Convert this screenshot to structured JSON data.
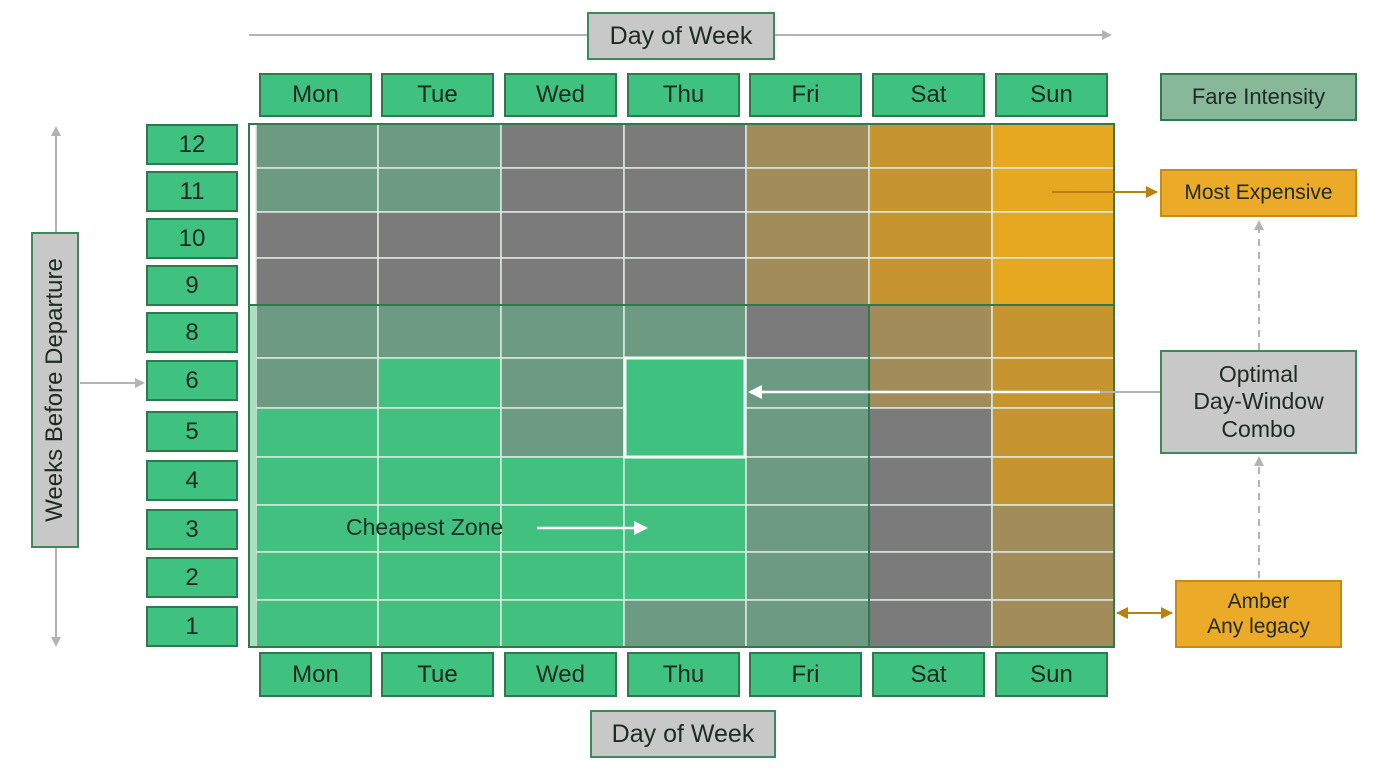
{
  "chart_data": {
    "type": "heatmap",
    "title": "",
    "xlabel": "Day of Week",
    "ylabel": "Weeks Before Departure",
    "x_categories": [
      "Mon",
      "Tue",
      "Wed",
      "Thu",
      "Fri",
      "Sat",
      "Sun"
    ],
    "y_categories": [
      "12",
      "11",
      "10",
      "9",
      "8",
      "6",
      "5",
      "4",
      "3",
      "2",
      "1"
    ],
    "cells": [
      [
        "sage",
        "sage",
        "grey",
        "grey",
        "tan",
        "amber",
        "gold"
      ],
      [
        "sage",
        "sage",
        "grey",
        "grey",
        "tan",
        "amber",
        "gold"
      ],
      [
        "grey",
        "grey",
        "grey",
        "grey",
        "tan",
        "amber",
        "gold"
      ],
      [
        "grey",
        "grey",
        "grey",
        "grey",
        "tan",
        "amber",
        "gold"
      ],
      [
        "sage",
        "sage",
        "sage",
        "sage",
        "grey",
        "tan",
        "amber"
      ],
      [
        "sage",
        "green",
        "sage",
        "green",
        "sage",
        "tan",
        "amber"
      ],
      [
        "green",
        "green",
        "sage",
        "green",
        "sage",
        "grey",
        "amber"
      ],
      [
        "green",
        "green",
        "green",
        "green",
        "sage",
        "grey",
        "amber"
      ],
      [
        "green",
        "green",
        "green",
        "green",
        "sage",
        "grey",
        "tan"
      ],
      [
        "green",
        "green",
        "green",
        "green",
        "sage",
        "grey",
        "tan"
      ],
      [
        "green",
        "green",
        "green",
        "sage",
        "sage",
        "grey",
        "tan"
      ]
    ],
    "palette": {
      "green": "#41c07f",
      "sage": "#6d9a82",
      "grey": "#7b7b7b",
      "tan": "#a18c5a",
      "amber": "#c6952f",
      "gold": "#e6a821"
    },
    "legend": {
      "title": "Fare Intensity",
      "most_expensive": "Most Expensive",
      "optimal": [
        "Optimal",
        "Day-Window",
        "Combo"
      ],
      "amber": [
        "Amber",
        "Any legacy"
      ]
    },
    "annotations": {
      "cheapest_zone": "Cheapest Zone"
    },
    "highlight": {
      "day": "Thu",
      "weeks": [
        "6",
        "5"
      ]
    }
  }
}
